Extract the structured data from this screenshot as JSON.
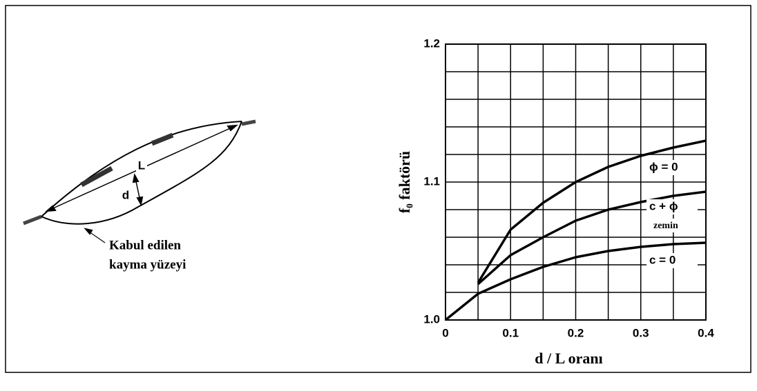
{
  "diagram": {
    "length_label": "L",
    "depth_label": "d",
    "caption_line1": "Kabul edilen",
    "caption_line2": "kayma yüzeyi"
  },
  "chart_data": {
    "type": "line",
    "xlabel": "d / L   oranı",
    "ylabel": "f₀  faktörü",
    "x": [
      0,
      0.05,
      0.1,
      0.15,
      0.2,
      0.25,
      0.3,
      0.35,
      0.4
    ],
    "series": [
      {
        "name": "ϕ = 0",
        "color": "#000000",
        "values": [
          null,
          1.027,
          1.0655,
          1.085,
          1.1,
          1.111,
          1.119,
          1.125,
          1.13
        ]
      },
      {
        "name": "c + ϕ",
        "color": "#000000",
        "values": [
          null,
          1.026,
          1.047,
          1.06,
          1.072,
          1.08,
          1.0855,
          1.09,
          1.093
        ]
      },
      {
        "name": "c = 0",
        "color": "#000000",
        "values": [
          1.0,
          1.019,
          1.0295,
          1.0385,
          1.0455,
          1.05,
          1.053,
          1.055,
          1.056
        ]
      }
    ],
    "series_note": "zemin",
    "xlim": [
      0,
      0.4
    ],
    "ylim": [
      1.0,
      1.2
    ],
    "xticks": [
      0,
      0.1,
      0.2,
      0.3,
      0.4
    ],
    "yticks": [
      {
        "value": 1.0,
        "label": "1.0"
      },
      1.1,
      1.2
    ],
    "xgrid": [
      0,
      0.05,
      0.1,
      0.15,
      0.2,
      0.25,
      0.3,
      0.35,
      0.4
    ],
    "ygrid": [
      1.0,
      1.02,
      1.04,
      1.06,
      1.08,
      1.1,
      1.12,
      1.14,
      1.16,
      1.18,
      1.2
    ],
    "grid": true
  }
}
